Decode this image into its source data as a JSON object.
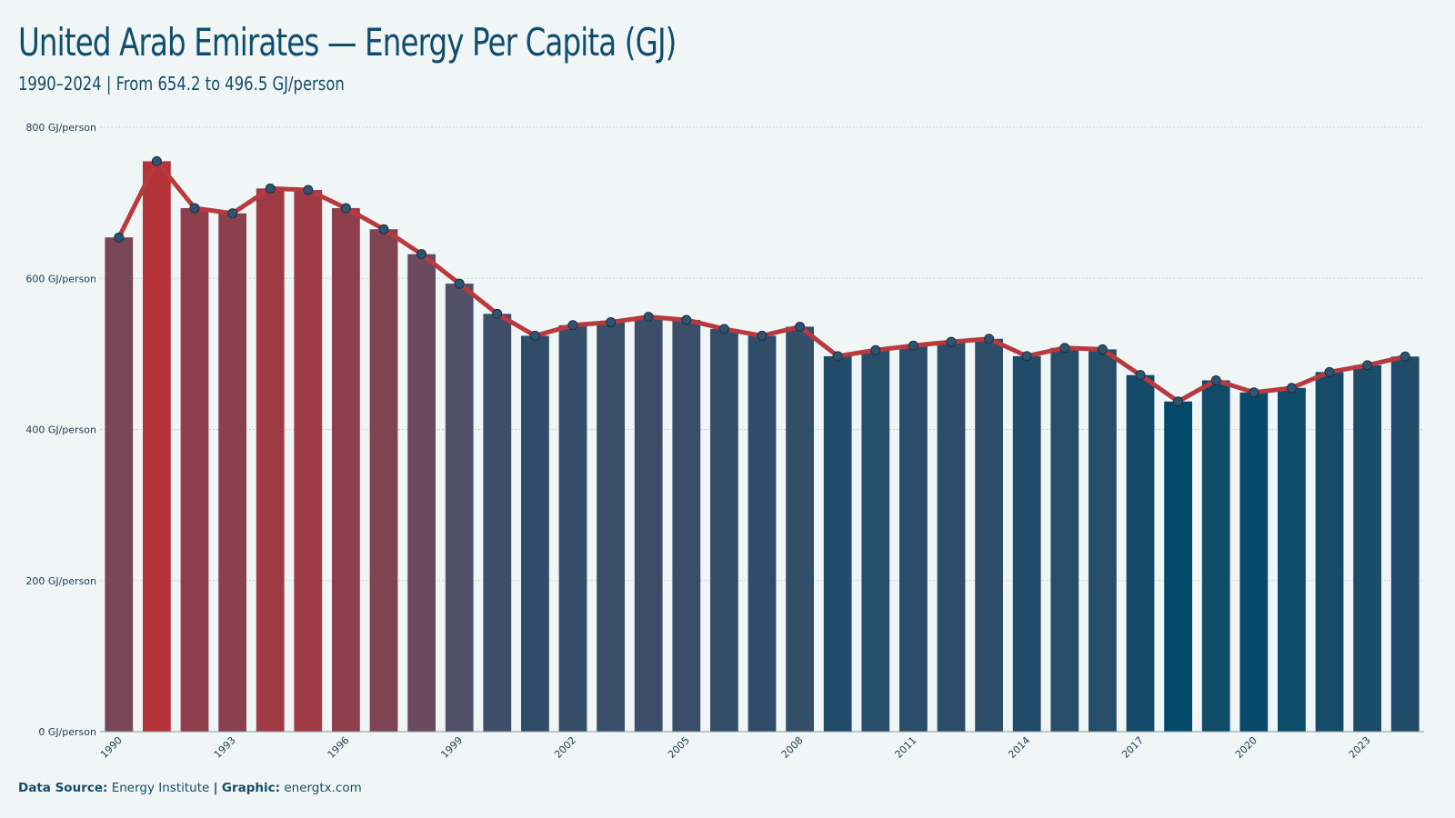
{
  "header": {
    "title": "United Arab Emirates — Energy Per Capita (GJ)",
    "subtitle": "1990–2024 | From 654.2 to 496.5 GJ/person"
  },
  "footer": {
    "source_label": "Data Source:",
    "source_value": "Energy Institute",
    "separator": "|",
    "graphic_label": "Graphic:",
    "graphic_value": "energtx.com"
  },
  "colors": {
    "line": "#b83a3e",
    "marker_fill": "#2e5473",
    "high": "#b5343a",
    "low": "#034a6a",
    "grid": "#c9d3d6",
    "tick_text": "#1e3b52"
  },
  "chart_data": {
    "type": "bar",
    "title": "United Arab Emirates — Energy Per Capita (GJ)",
    "subtitle": "1990–2024 | From 654.2 to 496.5 GJ/person",
    "xlabel": "",
    "ylabel": "",
    "ylim": [
      0,
      800
    ],
    "y_ticks": [
      0,
      200,
      400,
      600,
      800
    ],
    "y_tick_suffix": " GJ/person",
    "grid": true,
    "x_tick_labels": [
      "1990",
      "1993",
      "1996",
      "1999",
      "2002",
      "2005",
      "2008",
      "2011",
      "2014",
      "2017",
      "2020",
      "2023"
    ],
    "categories": [
      "1990",
      "1991",
      "1992",
      "1993",
      "1994",
      "1995",
      "1996",
      "1997",
      "1998",
      "1999",
      "2000",
      "2001",
      "2002",
      "2003",
      "2004",
      "2005",
      "2006",
      "2007",
      "2008",
      "2009",
      "2010",
      "2011",
      "2012",
      "2013",
      "2014",
      "2015",
      "2016",
      "2017",
      "2018",
      "2019",
      "2020",
      "2021",
      "2022",
      "2023",
      "2024"
    ],
    "values": [
      654.2,
      755,
      693,
      686,
      719,
      717,
      693,
      665,
      632,
      593,
      553,
      524,
      538,
      542,
      549,
      545,
      533,
      524,
      536,
      497,
      505,
      511,
      516,
      520,
      497,
      508,
      506,
      472,
      437,
      465,
      449,
      455,
      476,
      485,
      496.5
    ],
    "overlay_line": true
  }
}
